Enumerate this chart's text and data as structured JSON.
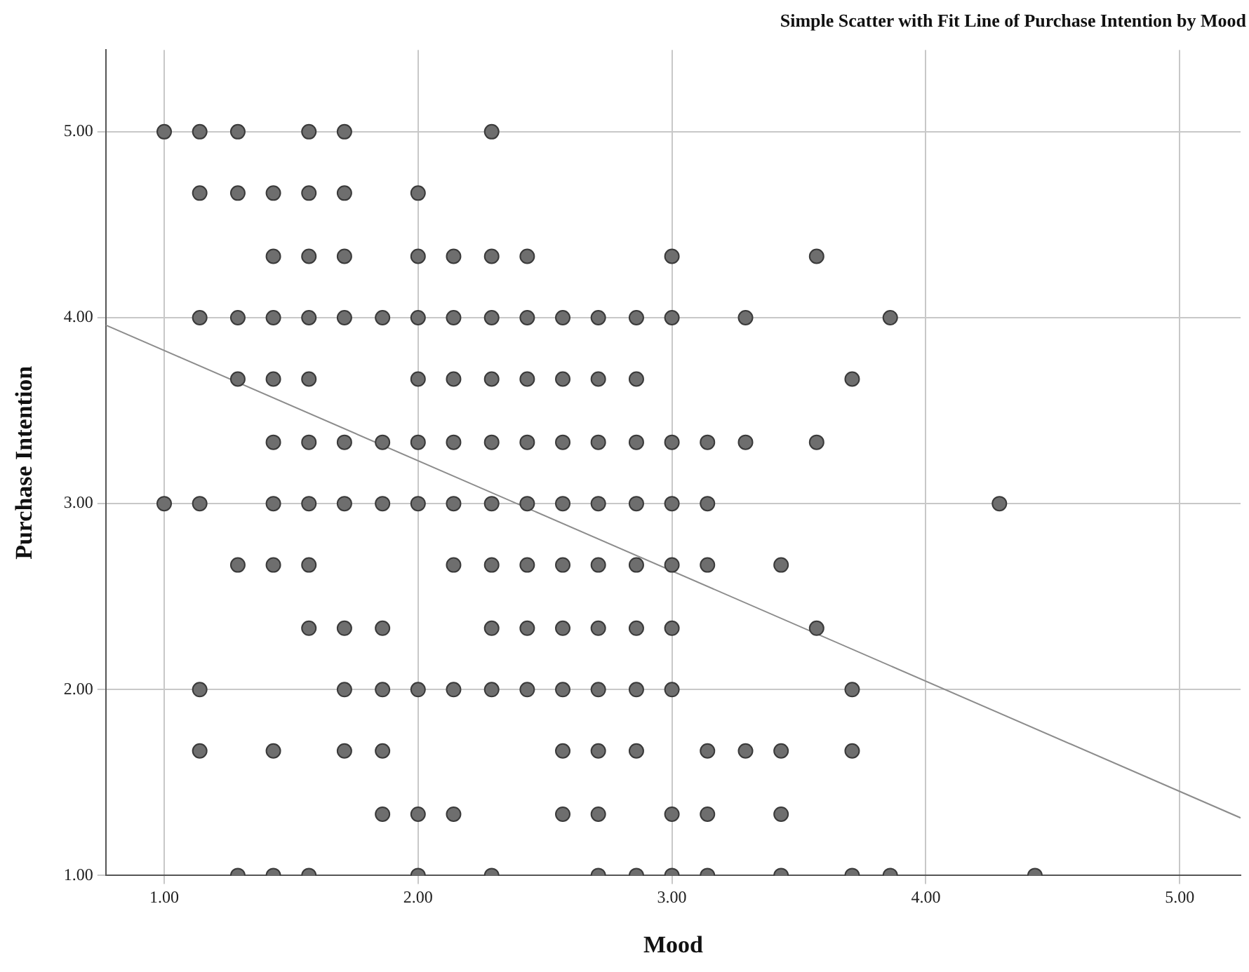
{
  "chart_data": {
    "type": "scatter",
    "title": "Simple Scatter with Fit Line of Purchase Intention by Mood",
    "xlabel": "Mood",
    "ylabel": "Purchase Intention",
    "xlim": [
      0.77,
      5.24
    ],
    "ylim": [
      1,
      5.44
    ],
    "xticks": [
      {
        "value": 1,
        "label": "1.00"
      },
      {
        "value": 2,
        "label": "2.00"
      },
      {
        "value": 3,
        "label": "3.00"
      },
      {
        "value": 4,
        "label": "4.00"
      },
      {
        "value": 5,
        "label": "5.00"
      }
    ],
    "yticks": [
      {
        "value": 1,
        "label": "1.00"
      },
      {
        "value": 2,
        "label": "2.00"
      },
      {
        "value": 3,
        "label": "3.00"
      },
      {
        "value": 4,
        "label": "4.00"
      },
      {
        "value": 5,
        "label": "5.00"
      }
    ],
    "grid": true,
    "legend": false,
    "series": [
      {
        "marker": "circle",
        "color": "#6e6e6e",
        "x": [
          1.0,
          1.14,
          1.29,
          1.57,
          1.71,
          2.29,
          1.14,
          1.29,
          1.43,
          1.57,
          1.71,
          2.0,
          1.43,
          1.57,
          1.71,
          2.0,
          2.14,
          2.29,
          2.43,
          3.0,
          3.57,
          1.14,
          1.29,
          1.43,
          1.57,
          1.71,
          1.86,
          2.0,
          2.14,
          2.29,
          2.43,
          2.57,
          2.71,
          2.86,
          3.0,
          3.29,
          3.86,
          1.29,
          1.43,
          1.57,
          2.0,
          2.14,
          2.29,
          2.43,
          2.57,
          2.71,
          2.86,
          3.71,
          1.43,
          1.57,
          1.71,
          1.86,
          2.0,
          2.14,
          2.29,
          2.43,
          2.57,
          2.71,
          2.86,
          3.0,
          3.14,
          3.29,
          3.57,
          1.0,
          1.14,
          1.43,
          1.57,
          1.71,
          1.86,
          2.0,
          2.14,
          2.29,
          2.43,
          2.57,
          2.71,
          2.86,
          3.0,
          3.14,
          4.29,
          1.29,
          1.43,
          1.57,
          2.14,
          2.29,
          2.43,
          2.57,
          2.71,
          2.86,
          3.0,
          3.14,
          3.43,
          1.57,
          1.71,
          1.86,
          2.29,
          2.43,
          2.57,
          2.71,
          2.86,
          3.0,
          3.57,
          1.14,
          1.71,
          1.86,
          2.0,
          2.14,
          2.29,
          2.43,
          2.57,
          2.71,
          2.86,
          3.0,
          3.71,
          1.14,
          1.43,
          1.71,
          1.86,
          2.57,
          2.71,
          2.86,
          3.14,
          3.29,
          3.43,
          3.71,
          1.86,
          2.0,
          2.14,
          2.57,
          2.71,
          3.0,
          3.14,
          3.43,
          1.29,
          1.43,
          1.57,
          2.0,
          2.29,
          2.71,
          2.86,
          3.0,
          3.14,
          3.43,
          3.71,
          3.86,
          4.43
        ],
        "values": [
          5,
          5,
          5,
          5,
          5,
          5,
          4.67,
          4.67,
          4.67,
          4.67,
          4.67,
          4.67,
          4.33,
          4.33,
          4.33,
          4.33,
          4.33,
          4.33,
          4.33,
          4.33,
          4.33,
          4,
          4,
          4,
          4,
          4,
          4,
          4,
          4,
          4,
          4,
          4,
          4,
          4,
          4,
          4,
          4,
          3.67,
          3.67,
          3.67,
          3.67,
          3.67,
          3.67,
          3.67,
          3.67,
          3.67,
          3.67,
          3.67,
          3.33,
          3.33,
          3.33,
          3.33,
          3.33,
          3.33,
          3.33,
          3.33,
          3.33,
          3.33,
          3.33,
          3.33,
          3.33,
          3.33,
          3.33,
          3,
          3,
          3,
          3,
          3,
          3,
          3,
          3,
          3,
          3,
          3,
          3,
          3,
          3,
          3,
          3,
          2.67,
          2.67,
          2.67,
          2.67,
          2.67,
          2.67,
          2.67,
          2.67,
          2.67,
          2.67,
          2.67,
          2.67,
          2.33,
          2.33,
          2.33,
          2.33,
          2.33,
          2.33,
          2.33,
          2.33,
          2.33,
          2.33,
          2,
          2,
          2,
          2,
          2,
          2,
          2,
          2,
          2,
          2,
          2,
          2,
          1.67,
          1.67,
          1.67,
          1.67,
          1.67,
          1.67,
          1.67,
          1.67,
          1.67,
          1.67,
          1.67,
          1.33,
          1.33,
          1.33,
          1.33,
          1.33,
          1.33,
          1.33,
          1.33,
          1,
          1,
          1,
          1,
          1,
          1,
          1,
          1,
          1,
          1,
          1,
          1,
          1
        ]
      },
      {
        "type": "line",
        "color": "#8c8c8c",
        "x": [
          0.77,
          5.24
        ],
        "values": [
          3.96,
          1.31
        ]
      }
    ]
  }
}
